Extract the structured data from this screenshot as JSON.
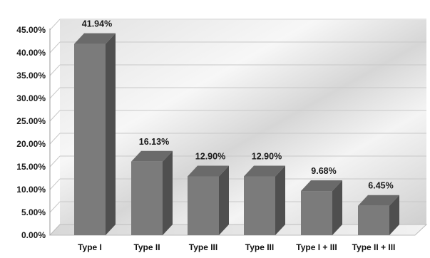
{
  "chart_data": {
    "type": "bar",
    "style": "3d-column",
    "title": "",
    "xlabel": "",
    "ylabel": "",
    "categories": [
      "Type I",
      "Type II",
      "Type III",
      "Type III",
      "Type I + III",
      "Type II + III"
    ],
    "values": [
      41.94,
      16.13,
      12.9,
      12.9,
      9.68,
      6.45
    ],
    "data_labels": [
      "41.94%",
      "16.13%",
      "12.90%",
      "12.90%",
      "9.68%",
      "6.45%"
    ],
    "ylim": [
      0,
      45
    ],
    "yticks": [
      0,
      5,
      10,
      15,
      20,
      25,
      30,
      35,
      40,
      45
    ],
    "ytick_labels": [
      "0.00%",
      "5.00%",
      "10.00%",
      "15.00%",
      "20.00%",
      "25.00%",
      "30.00%",
      "35.00%",
      "40.00%",
      "45.00%"
    ],
    "grid": true,
    "legend": "none",
    "colors": {
      "bar_front": "#7b7b7b",
      "bar_side": "#4f4f4f",
      "bar_top": "#6a6a6a",
      "grid": "#c8c8c8",
      "background_light": "#ffffff",
      "background_mid": "#d9d9d9"
    }
  }
}
